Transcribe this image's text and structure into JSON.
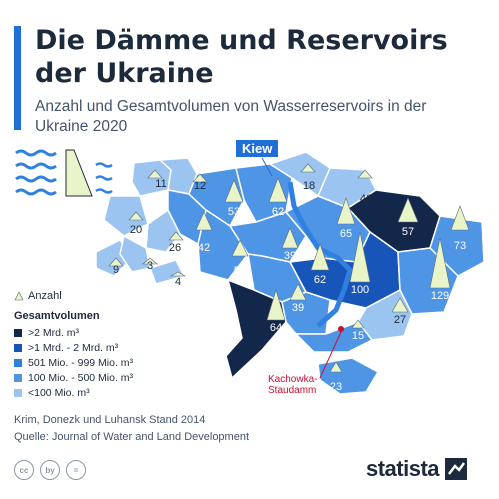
{
  "header": {
    "title": "Die Dämme und Reservoirs der Ukraine",
    "subtitle": "Anzahl und Gesamtvolumen von Wasserreservoirs in der Ukraine 2020"
  },
  "map": {
    "capital_label": "Kiew",
    "dam_label": "Kachowka-Staudamm",
    "regions": [
      {
        "count": "11",
        "tier": 1
      },
      {
        "count": "12",
        "tier": 1
      },
      {
        "count": "18",
        "tier": 1
      },
      {
        "count": "42",
        "tier": 1
      },
      {
        "count": "20",
        "tier": 1
      },
      {
        "count": "9",
        "tier": 1
      },
      {
        "count": "3",
        "tier": 1
      },
      {
        "count": "4",
        "tier": 1
      },
      {
        "count": "26",
        "tier": 1
      },
      {
        "count": "42",
        "tier": 2
      },
      {
        "count": "53",
        "tier": 2
      },
      {
        "count": "62",
        "tier": 2
      },
      {
        "count": "39",
        "tier": 2
      },
      {
        "count": "52",
        "tier": 2
      },
      {
        "count": "65",
        "tier": 2
      },
      {
        "count": "62",
        "tier": 2
      },
      {
        "count": "100",
        "tier": 3
      },
      {
        "count": "57",
        "tier": 4
      },
      {
        "count": "73",
        "tier": 2
      },
      {
        "count": "129",
        "tier": 2
      },
      {
        "count": "27",
        "tier": 1
      },
      {
        "count": "39",
        "tier": 2
      },
      {
        "count": "64",
        "tier": 4
      },
      {
        "count": "15",
        "tier": 2
      },
      {
        "count": "23",
        "tier": 2
      }
    ],
    "colors": {
      "tier0": "#b9d5f5",
      "tier1": "#8fbcee",
      "tier2": "#2f80e0",
      "tier3": "#1756b8",
      "tier4": "#12274a",
      "marker": "#e9f5c8",
      "dam": "#c8102e",
      "water": "#2f80e0"
    }
  },
  "legend": {
    "count_label": "Anzahl",
    "volume_title": "Gesamtvolumen",
    "items": [
      {
        "label": "&gt;2 Mrd. m³",
        "color": "#12274a"
      },
      {
        "label": "&gt;1 Mrd. - 2 Mrd. m³",
        "color": "#1756b8"
      },
      {
        "label": "501 Mio. - 999 Mio. m³",
        "color": "#2f80e0"
      },
      {
        "label": "100 Mio. - 500 Mio. m³",
        "color": "#4e95e6"
      },
      {
        "label": "&lt;100 Mio. m³",
        "color": "#9cc4f0"
      }
    ]
  },
  "footer": {
    "note": "Krim, Donezk und Luhansk Stand 2014",
    "source": "Quelle: Journal of Water and Land Development",
    "brand": "statista",
    "license_icons": [
      "cc",
      "by",
      "="
    ]
  }
}
